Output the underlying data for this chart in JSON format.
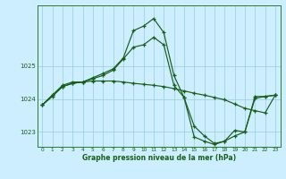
{
  "xlabel": "Graphe pression niveau de la mer (hPa)",
  "background_color": "#cceeff",
  "grid_color": "#99ccdd",
  "line_color": "#1a5c1a",
  "x_ticks": [
    0,
    1,
    2,
    3,
    4,
    5,
    6,
    7,
    8,
    9,
    10,
    11,
    12,
    13,
    14,
    15,
    16,
    17,
    18,
    19,
    20,
    21,
    22,
    23
  ],
  "y_ticks": [
    1023,
    1024,
    1025
  ],
  "ylim": [
    1022.55,
    1026.85
  ],
  "xlim": [
    -0.5,
    23.5
  ],
  "line1_y": [
    1023.82,
    1024.12,
    1024.42,
    1024.52,
    1024.52,
    1024.65,
    1024.78,
    1024.92,
    1025.25,
    1026.08,
    1026.22,
    1026.45,
    1026.02,
    1024.72,
    1024.05,
    1022.85,
    1022.72,
    1022.62,
    1022.72,
    1022.88,
    1023.0,
    1024.02,
    1024.08,
    1024.12
  ],
  "line2_y": [
    1023.82,
    1024.12,
    1024.38,
    1024.48,
    1024.52,
    1024.55,
    1024.55,
    1024.55,
    1024.52,
    1024.48,
    1024.45,
    1024.42,
    1024.38,
    1024.32,
    1024.25,
    1024.18,
    1024.12,
    1024.05,
    1023.98,
    1023.85,
    1023.72,
    1023.65,
    1023.58,
    1024.12
  ],
  "line3_y": [
    1023.82,
    1024.08,
    1024.38,
    1024.48,
    1024.52,
    1024.62,
    1024.72,
    1024.88,
    1025.22,
    1025.58,
    1025.65,
    1025.88,
    1025.65,
    1024.42,
    1024.05,
    1023.18,
    1022.88,
    1022.65,
    1022.72,
    1023.05,
    1023.0,
    1024.08,
    1024.08,
    1024.12
  ]
}
